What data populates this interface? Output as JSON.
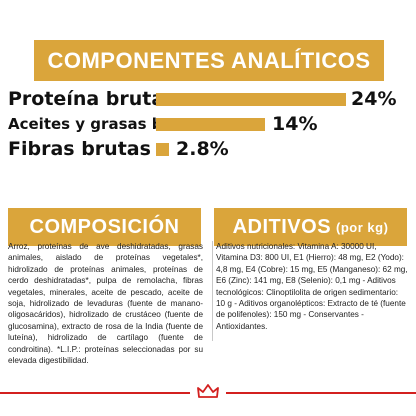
{
  "analytic": {
    "title": "COMPONENTES ANALÍTICOS",
    "rows": [
      {
        "label": "Proteína bruta",
        "value": "24%",
        "percent": 24
      },
      {
        "label": "Aceites y grasas brutos",
        "value": "14%",
        "percent": 14
      },
      {
        "label": "Fibras brutas",
        "value": "2.8%",
        "percent": 2.8
      }
    ]
  },
  "composition": {
    "title": "COMPOSICIÓN",
    "text": "Arroz, proteínas de ave deshidratadas, grasas animales, aislado de proteínas vegetales*, hidrolizado de proteínas animales, proteínas de cerdo deshidratadas*, pulpa de remolacha, fibras vegetales, minerales, aceite de pescado, aceite de soja, hidrolizado de levaduras (fuente de manano-oligosacáridos), hidrolizado de crustáceo (fuente de glucosamina), extracto de rosa de la India (fuente de luteína), hidrolizado de cartílago (fuente de condroitina). *L.I.P.: proteínas seleccionadas por su elevada digestibilidad."
  },
  "additives": {
    "title": "ADITIVOS",
    "subtitle": "(por kg)",
    "text": "Aditivos nutricionales: Vitamina A: 30000 UI, Vitamina D3: 800 UI, E1 (Hierro): 48 mg, E2 (Yodo): 4,8 mg, E4 (Cobre): 15 mg, E5 (Manganeso): 62 mg, E6 (Zinc): 141 mg, E8 (Selenio): 0,1 mg - Aditivos tecnológicos: Clinoptilolita de origen sedimentario: 10 g - Aditivos organolépticos: Extracto de té (fuente de polifenoles): 150 mg - Conservantes - Antioxidantes."
  },
  "colors": {
    "gold": "#daa53b",
    "brand_red": "#d3201f"
  },
  "footer": {
    "logo_icon": "crown-icon"
  }
}
